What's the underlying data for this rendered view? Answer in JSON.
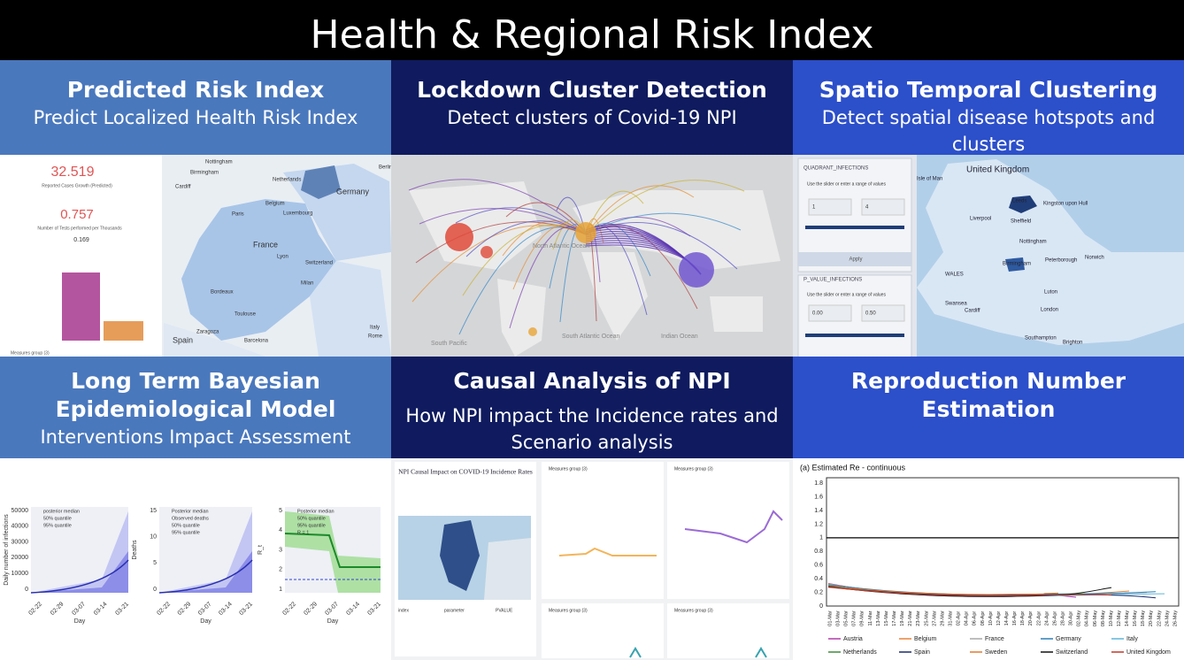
{
  "header": {
    "title": "Health & Regional Risk Index"
  },
  "panels": [
    {
      "title": "Predicted Risk Index",
      "subtitle": "Predict Localized Health Risk Index"
    },
    {
      "title": "Lockdown Cluster Detection",
      "subtitle": "Detect clusters of Covid-19 NPI"
    },
    {
      "title": "Spatio Temporal Clustering",
      "subtitle": "Detect spatial disease hotspots and clusters"
    },
    {
      "title": "Long Term Bayesian Epidemiological Model",
      "subtitle": "Interventions Impact Assessment"
    },
    {
      "title": "Causal Analysis of NPI",
      "subtitle": "How NPI impact the Incidence rates and Scenario analysis"
    },
    {
      "title": "Reproduction Number Estimation",
      "subtitle": ""
    }
  ],
  "risk": {
    "kpi1": "32.519",
    "kpi1_label": "Reported Cases Growth (Predicted)",
    "kpi2": "0.757",
    "kpi2_label": "Number of Tests performed per Thousands",
    "kpi3": "0.169",
    "footer": "Measures group (3)",
    "places": [
      "Nottingham",
      "Birmingham",
      "Cardiff",
      "Netherlands",
      "Berlin",
      "Germany",
      "Belgium",
      "Luxembourg",
      "Paris",
      "France",
      "Switzerland",
      "Milan",
      "Bordeaux",
      "Spain",
      "Barcelona",
      "Italy",
      "Rome",
      "Zaragoza",
      "Lyon",
      "Toulouse"
    ]
  },
  "lockdown": {
    "oceans": [
      "North Atlantic Ocean",
      "South Atlantic Ocean",
      "Indian Ocean",
      "South Pacific"
    ]
  },
  "spatio": {
    "filter1": "QUADRANT_INFECTIONS",
    "hint": "Use the slider or enter a range of values",
    "min1": "1",
    "max1": "4",
    "apply": "Apply",
    "filter2": "P_VALUE_INFECTIONS",
    "hint2": "Use the slider or enter a range of values",
    "min2": "0.00",
    "max2": "0.50",
    "places": [
      "United Kingdom",
      "Isle of Man",
      "Leeds",
      "Kingston upon Hull",
      "Liverpool",
      "Sheffield",
      "Nottingham",
      "Birmingham",
      "Peterborough",
      "Norwich",
      "WALES",
      "Luton",
      "Swansea",
      "Cardiff",
      "London",
      "Southampton",
      "Brighton"
    ]
  },
  "bayes": {
    "xlabel": "Day",
    "xticks": [
      "02-22",
      "02-29",
      "03-07",
      "03-14",
      "03-21"
    ],
    "charts": [
      {
        "ylabel": "Daily number of infections",
        "yticks": [
          "0",
          "10000",
          "20000",
          "30000",
          "40000",
          "50000"
        ],
        "legend": [
          "posterior median",
          "50% quantile",
          "95% quantile"
        ]
      },
      {
        "ylabel": "Deaths",
        "yticks": [
          "0",
          "5",
          "10",
          "15"
        ],
        "legend": [
          "Posterior median",
          "Observed deaths",
          "50% quantile",
          "95% quantile"
        ]
      },
      {
        "ylabel": "R_t",
        "yticks": [
          "1",
          "2",
          "3",
          "4",
          "5"
        ],
        "legend": [
          "Posterior median",
          "50% quantile",
          "95% quantile",
          "R = 1"
        ]
      }
    ]
  },
  "causal": {
    "card_title": "NPI Causal Impact on COVID-19 Incidence Rates",
    "legend_title": "Measures group (3)",
    "table_head": [
      "index",
      "parameter",
      "PVALUE"
    ]
  },
  "reproduction": {
    "chart_title": "(a) Estimated Re - continuous",
    "yticks": [
      "0",
      "0.2",
      "0.4",
      "0.6",
      "0.8",
      "1",
      "1.2",
      "1.4",
      "1.6",
      "1.8"
    ],
    "xticks": [
      "01-Mar",
      "03-Mar",
      "05-Mar",
      "07-Mar",
      "09-Mar",
      "11-Mar",
      "13-Mar",
      "15-Mar",
      "17-Mar",
      "19-Mar",
      "21-Mar",
      "23-Mar",
      "25-Mar",
      "27-Mar",
      "29-Mar",
      "31-Mar",
      "02-Apr",
      "04-Apr",
      "06-Apr",
      "08-Apr",
      "10-Apr",
      "12-Apr",
      "14-Apr",
      "16-Apr",
      "18-Apr",
      "20-Apr",
      "22-Apr",
      "24-Apr",
      "26-Apr",
      "28-Apr",
      "30-Apr",
      "02-May",
      "04-May",
      "06-May",
      "08-May",
      "10-May",
      "12-May",
      "14-May",
      "16-May",
      "18-May",
      "20-May",
      "22-May",
      "24-May",
      "26-May"
    ],
    "series": [
      {
        "name": "Austria",
        "color": "#b03aa8"
      },
      {
        "name": "Belgium",
        "color": "#e8843a"
      },
      {
        "name": "France",
        "color": "#a9a9a9"
      },
      {
        "name": "Germany",
        "color": "#2a7fb8"
      },
      {
        "name": "Italy",
        "color": "#5fb6d8"
      },
      {
        "name": "Netherlands",
        "color": "#3f8a3a"
      },
      {
        "name": "Spain",
        "color": "#1a2a6a"
      },
      {
        "name": "Sweden",
        "color": "#e07a2e"
      },
      {
        "name": "Switzerland",
        "color": "#111111"
      },
      {
        "name": "United Kingdom",
        "color": "#c0392b"
      }
    ]
  }
}
